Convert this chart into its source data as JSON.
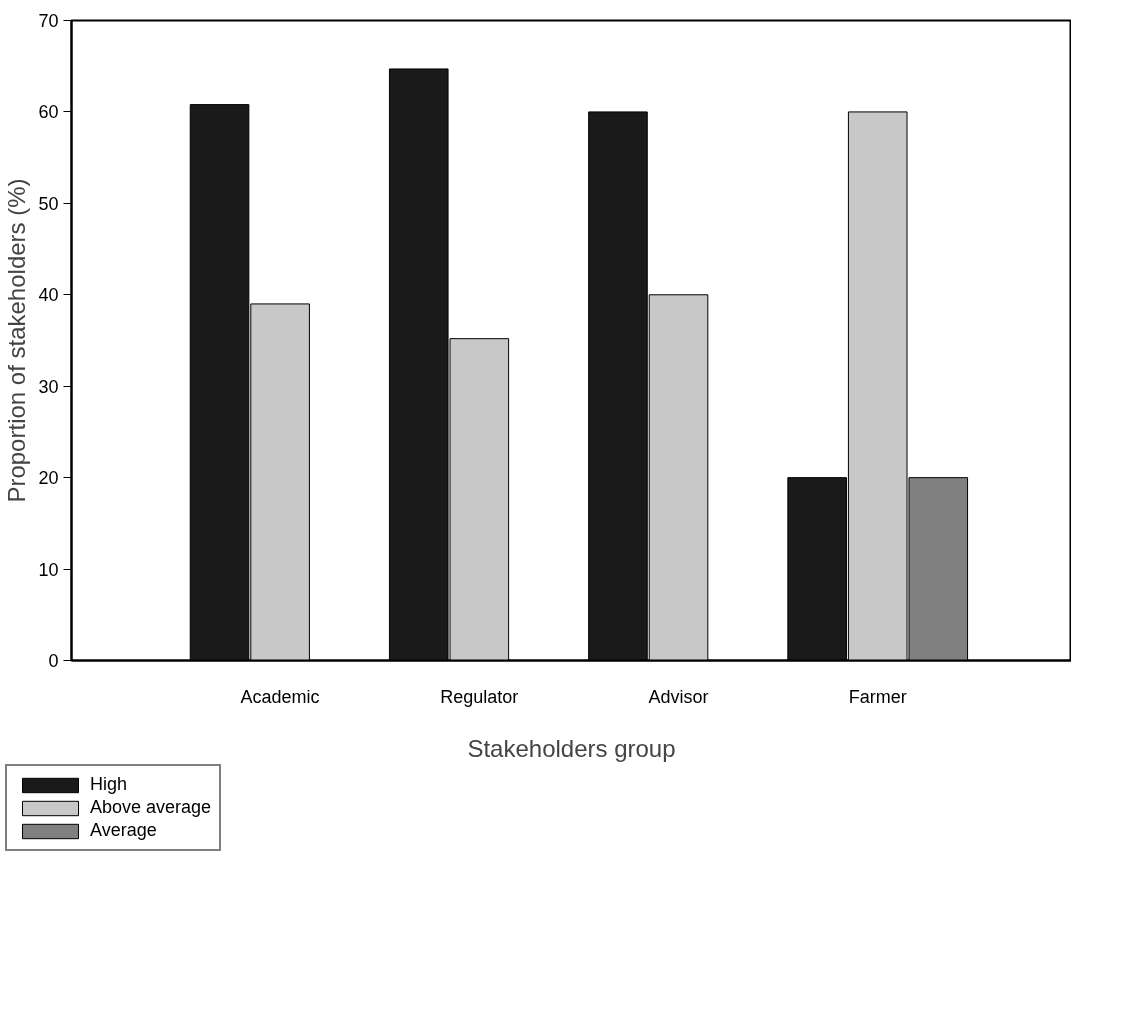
{
  "chart_data": {
    "type": "bar",
    "xlabel": "Stakeholders group",
    "ylabel": "Proportion of stakeholders (%)",
    "categories": [
      "Academic",
      "Regulator",
      "Advisor",
      "Farmer"
    ],
    "series": [
      {
        "name": "High",
        "color": "#1a1a1a",
        "values": [
          60.8,
          64.7,
          60,
          20
        ]
      },
      {
        "name": "Above average",
        "color": "#c8c8c8",
        "values": [
          39,
          35.2,
          40,
          60
        ]
      },
      {
        "name": "Average",
        "color": "#808080",
        "values": [
          null,
          null,
          null,
          20
        ]
      }
    ],
    "ylim": [
      0,
      70
    ],
    "yticks": [
      0,
      10,
      20,
      30,
      40,
      50,
      60,
      70
    ],
    "grid": false,
    "legend": "bottom left"
  }
}
